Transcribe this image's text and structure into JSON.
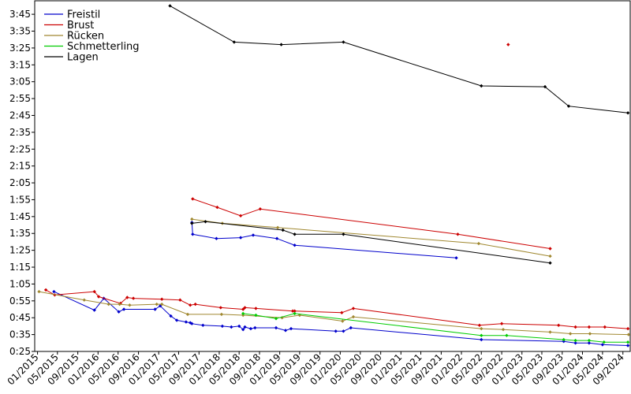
{
  "chart_data": {
    "type": "line",
    "title": "",
    "xlabel": "",
    "ylabel": "",
    "x_ticks": [
      "01/2015",
      "05/2015",
      "09/2015",
      "01/2016",
      "05/2016",
      "09/2016",
      "01/2017",
      "05/2017",
      "09/2017",
      "01/2018",
      "05/2018",
      "09/2018",
      "01/2019",
      "05/2019",
      "09/2019",
      "01/2020",
      "05/2020",
      "09/2020",
      "01/2021",
      "05/2021",
      "09/2021",
      "01/2022",
      "05/2022",
      "09/2022",
      "01/2023",
      "05/2023",
      "09/2023",
      "01/2024",
      "05/2024",
      "09/2024"
    ],
    "y_ticks": [
      "0:25",
      "0:35",
      "0:45",
      "0:55",
      "1:05",
      "1:15",
      "1:25",
      "1:35",
      "1:45",
      "1:55",
      "2:05",
      "2:15",
      "2:25",
      "2:35",
      "2:45",
      "2:55",
      "3:05",
      "3:15",
      "3:25",
      "3:35",
      "3:45"
    ],
    "xlim": [
      "2014-12-15",
      "2024-10-15"
    ],
    "ylim": [
      "0:25",
      "3:53"
    ],
    "grid": false,
    "legend_position": "top-left",
    "series": [
      {
        "name": "Freistil",
        "color": "#0000cc",
        "segments": [
          [
            [
              "2015-04-10",
              "1:00.5"
            ],
            [
              "2015-12-10",
              "0:49.5"
            ],
            [
              "2016-02-05",
              "0:56.5"
            ],
            [
              "2016-05-05",
              "0:48.5"
            ],
            [
              "2016-06-05",
              "0:50.0"
            ],
            [
              "2016-12-10",
              "0:50.0"
            ],
            [
              "2017-01-10",
              "0:52.0"
            ],
            [
              "2017-03-15",
              "0:46.0"
            ],
            [
              "2017-04-20",
              "0:43.5"
            ],
            [
              "2017-06-15",
              "0:42.5"
            ],
            [
              "2017-07-10",
              "0:42.0"
            ],
            [
              "2017-07-20",
              "0:41.5"
            ],
            [
              "2017-09-25",
              "0:40.5"
            ],
            [
              "2018-01-20",
              "0:40.0"
            ],
            [
              "2018-03-15",
              "0:39.5"
            ],
            [
              "2018-05-01",
              "0:40.0"
            ],
            [
              "2018-05-25",
              "0:38.0"
            ],
            [
              "2018-06-05",
              "0:39.5"
            ],
            [
              "2018-07-10",
              "0:38.5"
            ],
            [
              "2018-08-05",
              "0:39.0"
            ],
            [
              "2018-12-10",
              "0:39.0"
            ],
            [
              "2019-02-05",
              "0:37.5"
            ],
            [
              "2019-03-10",
              "0:38.5"
            ],
            [
              "2019-12-05",
              "0:37.0"
            ],
            [
              "2020-01-20",
              "0:37.0"
            ],
            [
              "2020-03-05",
              "0:39.0"
            ],
            [
              "2022-05-01",
              "0:32.0"
            ],
            [
              "2023-09-10",
              "0:31.0"
            ],
            [
              "2023-11-20",
              "0:30.0"
            ],
            [
              "2024-02-10",
              "0:30.0"
            ],
            [
              "2024-05-01",
              "0:29.0"
            ],
            [
              "2024-10-01",
              "0:28.5"
            ]
          ],
          [
            [
              "2017-07-20",
              "1:41.5"
            ],
            [
              "2017-07-25",
              "1:34.5"
            ],
            [
              "2017-12-15",
              "1:32.0"
            ],
            [
              "2018-05-10",
              "1:32.5"
            ],
            [
              "2018-07-25",
              "1:34.0"
            ],
            [
              "2018-12-15",
              "1:32.0"
            ],
            [
              "2019-04-01",
              "1:28.0"
            ],
            [
              "2021-12-01",
              "1:20.5"
            ]
          ]
        ]
      },
      {
        "name": "Brust",
        "color": "#cc0000",
        "segments": [
          [
            [
              "2015-02-20",
              "1:01.5"
            ],
            [
              "2015-04-15",
              "0:58.5"
            ],
            [
              "2015-12-10",
              "1:00.5"
            ],
            [
              "2016-01-05",
              "0:57.5"
            ],
            [
              "2016-05-15",
              "0:53.5"
            ],
            [
              "2016-06-25",
              "0:57.0"
            ],
            [
              "2016-08-01",
              "0:56.5"
            ],
            [
              "2017-01-20",
              "0:56.0"
            ],
            [
              "2017-05-10",
              "0:55.5"
            ],
            [
              "2017-07-10",
              "0:52.5"
            ],
            [
              "2017-08-10",
              "0:53.0"
            ],
            [
              "2018-01-10",
              "0:51.0"
            ],
            [
              "2018-05-25",
              "0:50.0"
            ],
            [
              "2018-06-05",
              "0:51.0"
            ],
            [
              "2018-08-10",
              "0:50.5"
            ],
            [
              "2019-03-20",
              "0:49.0"
            ],
            [
              "2019-04-01",
              "0:49.0"
            ],
            [
              "2020-01-10",
              "0:48.0"
            ],
            [
              "2020-03-20",
              "0:50.5"
            ],
            [
              "2022-04-20",
              "0:40.5"
            ],
            [
              "2022-09-01",
              "0:41.5"
            ],
            [
              "2023-08-10",
              "0:40.5"
            ],
            [
              "2023-11-20",
              "0:39.5"
            ],
            [
              "2024-02-10",
              "0:39.5"
            ],
            [
              "2024-05-15",
              "0:39.5"
            ],
            [
              "2024-10-01",
              "0:38.5"
            ]
          ],
          [
            [
              "2017-07-25",
              "1:55.5"
            ],
            [
              "2017-12-20",
              "1:50.5"
            ],
            [
              "2018-05-10",
              "1:45.5"
            ],
            [
              "2018-09-05",
              "1:49.5"
            ],
            [
              "2021-12-10",
              "1:34.5"
            ],
            [
              "2023-06-20",
              "1:26.0"
            ]
          ],
          [
            [
              "2022-10-10",
              "3:27.0"
            ]
          ]
        ]
      },
      {
        "name": "Rücken",
        "color": "#a08830",
        "segments": [
          [
            [
              "2015-01-10",
              "1:00.5"
            ],
            [
              "2015-10-10",
              "0:55.5"
            ],
            [
              "2016-03-05",
              "0:53.0"
            ],
            [
              "2016-05-10",
              "0:53.0"
            ],
            [
              "2016-07-10",
              "0:52.5"
            ],
            [
              "2016-12-20",
              "0:53.0"
            ],
            [
              "2017-01-20",
              "0:53.0"
            ],
            [
              "2017-06-25",
              "0:47.0"
            ],
            [
              "2018-01-15",
              "0:47.0"
            ],
            [
              "2018-05-25",
              "0:46.5"
            ],
            [
              "2019-01-15",
              "0:45.0"
            ],
            [
              "2019-05-01",
              "0:46.5"
            ],
            [
              "2020-01-15",
              "0:43.0"
            ],
            [
              "2020-03-20",
              "0:45.5"
            ],
            [
              "2022-05-01",
              "0:38.5"
            ],
            [
              "2022-09-10",
              "0:38.0"
            ],
            [
              "2023-06-20",
              "0:36.5"
            ],
            [
              "2023-10-20",
              "0:35.5"
            ],
            [
              "2024-02-15",
              "0:35.5"
            ],
            [
              "2024-10-05",
              "0:35.0"
            ]
          ],
          [
            [
              "2017-07-20",
              "1:43.5"
            ],
            [
              "2018-01-20",
              "1:41.0"
            ],
            [
              "2018-12-20",
              "1:38.5"
            ],
            [
              "2022-04-15",
              "1:29.0"
            ],
            [
              "2023-06-20",
              "1:21.5"
            ]
          ]
        ]
      },
      {
        "name": "Schmetterling",
        "color": "#00cc00",
        "segments": [
          [
            [
              "2018-05-25",
              "0:47.5"
            ],
            [
              "2018-08-10",
              "0:46.5"
            ],
            [
              "2018-12-10",
              "0:44.5"
            ],
            [
              "2019-04-01",
              "0:47.5"
            ],
            [
              "2022-05-01",
              "0:34.5"
            ],
            [
              "2022-10-01",
              "0:34.5"
            ],
            [
              "2023-09-10",
              "0:32.0"
            ],
            [
              "2023-11-20",
              "0:31.5"
            ],
            [
              "2024-02-10",
              "0:31.5"
            ],
            [
              "2024-05-10",
              "0:30.5"
            ],
            [
              "2024-10-01",
              "0:30.5"
            ]
          ]
        ]
      },
      {
        "name": "Lagen",
        "color": "#000000",
        "segments": [
          [
            [
              "2017-03-10",
              "3:50.0"
            ],
            [
              "2018-04-01",
              "3:28.5"
            ],
            [
              "2019-01-10",
              "3:27.0"
            ],
            [
              "2020-01-20",
              "3:28.5"
            ],
            [
              "2022-05-01",
              "3:02.5"
            ],
            [
              "2023-05-20",
              "3:02.0"
            ],
            [
              "2023-10-10",
              "2:50.5"
            ],
            [
              "2024-10-01",
              "2:46.5"
            ]
          ],
          [
            [
              "2017-07-20",
              "1:41.0"
            ],
            [
              "2017-10-10",
              "1:42.0"
            ],
            [
              "2019-01-20",
              "1:37.0"
            ],
            [
              "2019-04-01",
              "1:34.5"
            ],
            [
              "2020-01-20",
              "1:34.5"
            ],
            [
              "2023-06-20",
              "1:17.5"
            ]
          ]
        ]
      }
    ]
  }
}
